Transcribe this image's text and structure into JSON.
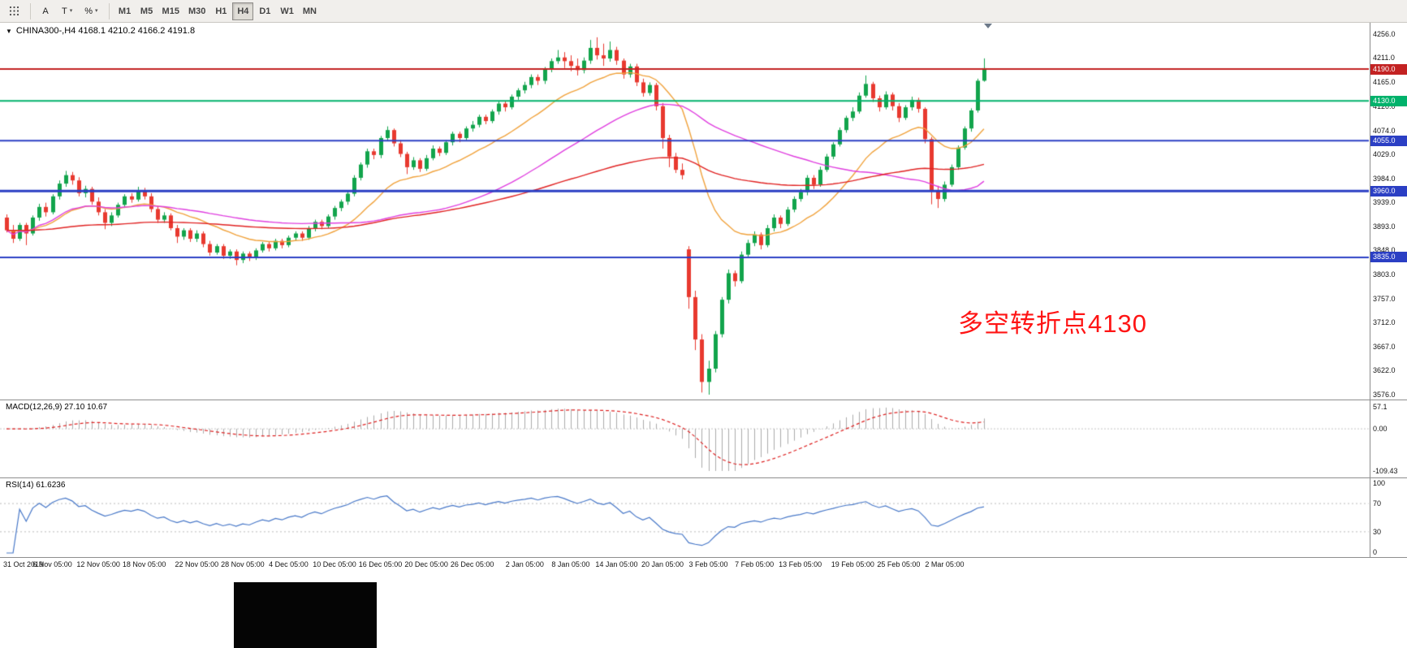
{
  "toolbar": {
    "caret_icon": "▾",
    "grid_tool": {
      "id": "tick-grid",
      "name": "grid"
    },
    "tools": [
      {
        "id": "cursor",
        "label": "A",
        "dropdown": false
      },
      {
        "id": "text",
        "label": "T",
        "dropdown": true
      },
      {
        "id": "indicators",
        "label": "%",
        "dropdown": true
      }
    ],
    "timeframes": [
      {
        "label": "M1",
        "active": false
      },
      {
        "label": "M5",
        "active": false
      },
      {
        "label": "M15",
        "active": false
      },
      {
        "label": "M30",
        "active": false
      },
      {
        "label": "H1",
        "active": false
      },
      {
        "label": "H4",
        "active": true
      },
      {
        "label": "D1",
        "active": false
      },
      {
        "label": "W1",
        "active": false
      },
      {
        "label": "MN",
        "active": false
      }
    ]
  },
  "title": {
    "dropdown_icon": "▼",
    "text": "CHINA300-,H4 4168.1 4210.2 4166.2 4191.8"
  },
  "chart_data": {
    "type": "candlestick",
    "symbol": "CHINA300-",
    "timeframe": "H4",
    "current_bar": {
      "open": 4168.1,
      "high": 4210.2,
      "low": 4166.2,
      "close": 4191.8
    },
    "bull_color": "#12a44c",
    "bear_color": "#e8392f",
    "y_axis": {
      "min": 3576,
      "max": 4256,
      "ticks": [
        "4256.0",
        "4211.0",
        "4165.0",
        "4120.0",
        "4074.0",
        "4029.0",
        "3984.0",
        "3939.0",
        "3893.0",
        "3848.0",
        "3803.0",
        "3757.0",
        "3712.0",
        "3667.0",
        "3622.0",
        "3576.0"
      ]
    },
    "hlines": [
      {
        "price": 4190.0,
        "label": "4190.0",
        "color": "#c32222",
        "width": 2
      },
      {
        "price": 4130.0,
        "label": "4130.0",
        "color": "#00b26b",
        "width": 2
      },
      {
        "price": 4055.0,
        "label": "4055.0",
        "color": "#2b3fc4",
        "width": 2
      },
      {
        "price": 3960.0,
        "label": "3960.0",
        "color": "#2b3fc4",
        "width": 3
      },
      {
        "price": 3835.0,
        "label": "3835.0",
        "color": "#2b3fc4",
        "width": 2
      }
    ],
    "overlays": [
      {
        "name": "ma-fast-orange",
        "type": "ema",
        "period": 18,
        "color": "#f0a23c"
      },
      {
        "name": "ma-mid-magenta",
        "type": "sma",
        "period": 45,
        "color": "#df3fdf"
      },
      {
        "name": "ma-slow-red",
        "type": "ema",
        "period": 120,
        "color": "#e02222"
      }
    ],
    "annotation": {
      "text": "多空转折点4130",
      "color": "#ff1414"
    },
    "x_labels": [
      {
        "text": "31 Oct 2019",
        "i": 0
      },
      {
        "text": "6 Nov 05:00",
        "i": 7
      },
      {
        "text": "12 Nov 05:00",
        "i": 14
      },
      {
        "text": "18 Nov 05:00",
        "i": 21
      },
      {
        "text": "22 Nov 05:00",
        "i": 29
      },
      {
        "text": "28 Nov 05:00",
        "i": 36
      },
      {
        "text": "4 Dec 05:00",
        "i": 43
      },
      {
        "text": "10 Dec 05:00",
        "i": 50
      },
      {
        "text": "16 Dec 05:00",
        "i": 57
      },
      {
        "text": "20 Dec 05:00",
        "i": 64
      },
      {
        "text": "26 Dec 05:00",
        "i": 71
      },
      {
        "text": "2 Jan 05:00",
        "i": 79
      },
      {
        "text": "8 Jan 05:00",
        "i": 86
      },
      {
        "text": "14 Jan 05:00",
        "i": 93
      },
      {
        "text": "20 Jan 05:00",
        "i": 100
      },
      {
        "text": "3 Feb 05:00",
        "i": 107
      },
      {
        "text": "7 Feb 05:00",
        "i": 114
      },
      {
        "text": "13 Feb 05:00",
        "i": 121
      },
      {
        "text": "19 Feb 05:00",
        "i": 129
      },
      {
        "text": "25 Feb 05:00",
        "i": 136
      },
      {
        "text": "2 Mar 05:00",
        "i": 143
      }
    ],
    "candles": [
      [
        3910,
        3916,
        3882,
        3886
      ],
      [
        3886,
        3896,
        3862,
        3870
      ],
      [
        3870,
        3900,
        3866,
        3896
      ],
      [
        3896,
        3900,
        3858,
        3880
      ],
      [
        3880,
        3914,
        3876,
        3910
      ],
      [
        3910,
        3936,
        3904,
        3930
      ],
      [
        3930,
        3938,
        3912,
        3920
      ],
      [
        3920,
        3954,
        3916,
        3950
      ],
      [
        3950,
        3980,
        3944,
        3974
      ],
      [
        3974,
        3998,
        3968,
        3990
      ],
      [
        3990,
        3996,
        3972,
        3980
      ],
      [
        3980,
        3986,
        3950,
        3956
      ],
      [
        3956,
        3970,
        3948,
        3964
      ],
      [
        3964,
        3968,
        3934,
        3940
      ],
      [
        3940,
        3948,
        3914,
        3920
      ],
      [
        3920,
        3926,
        3888,
        3900
      ],
      [
        3900,
        3920,
        3894,
        3914
      ],
      [
        3914,
        3938,
        3910,
        3934
      ],
      [
        3934,
        3954,
        3928,
        3950
      ],
      [
        3950,
        3956,
        3938,
        3944
      ],
      [
        3944,
        3968,
        3940,
        3960
      ],
      [
        3960,
        3966,
        3944,
        3950
      ],
      [
        3950,
        3956,
        3920,
        3926
      ],
      [
        3926,
        3932,
        3900,
        3906
      ],
      [
        3906,
        3920,
        3900,
        3914
      ],
      [
        3914,
        3918,
        3886,
        3890
      ],
      [
        3890,
        3896,
        3862,
        3874
      ],
      [
        3874,
        3890,
        3868,
        3886
      ],
      [
        3886,
        3890,
        3864,
        3870
      ],
      [
        3870,
        3886,
        3864,
        3880
      ],
      [
        3880,
        3884,
        3854,
        3860
      ],
      [
        3860,
        3866,
        3838,
        3844
      ],
      [
        3844,
        3860,
        3840,
        3856
      ],
      [
        3856,
        3860,
        3832,
        3838
      ],
      [
        3838,
        3850,
        3832,
        3846
      ],
      [
        3846,
        3850,
        3820,
        3830
      ],
      [
        3830,
        3846,
        3824,
        3842
      ],
      [
        3842,
        3846,
        3828,
        3834
      ],
      [
        3834,
        3852,
        3830,
        3848
      ],
      [
        3848,
        3864,
        3844,
        3860
      ],
      [
        3860,
        3864,
        3846,
        3852
      ],
      [
        3852,
        3870,
        3848,
        3866
      ],
      [
        3866,
        3870,
        3852,
        3858
      ],
      [
        3858,
        3876,
        3854,
        3872
      ],
      [
        3872,
        3884,
        3866,
        3880
      ],
      [
        3880,
        3884,
        3866,
        3872
      ],
      [
        3872,
        3894,
        3868,
        3890
      ],
      [
        3890,
        3906,
        3884,
        3902
      ],
      [
        3902,
        3906,
        3888,
        3894
      ],
      [
        3894,
        3916,
        3890,
        3912
      ],
      [
        3912,
        3932,
        3906,
        3928
      ],
      [
        3928,
        3944,
        3922,
        3940
      ],
      [
        3940,
        3960,
        3934,
        3955
      ],
      [
        3955,
        3990,
        3950,
        3985
      ],
      [
        3985,
        4014,
        3980,
        4010
      ],
      [
        4010,
        4040,
        4004,
        4035
      ],
      [
        4035,
        4040,
        4020,
        4028
      ],
      [
        4028,
        4064,
        4022,
        4060
      ],
      [
        4060,
        4082,
        4054,
        4075
      ],
      [
        4075,
        4078,
        4044,
        4050
      ],
      [
        4050,
        4056,
        4024,
        4030
      ],
      [
        4030,
        4034,
        3992,
        4005
      ],
      [
        4005,
        4024,
        4000,
        4018
      ],
      [
        4018,
        4022,
        3996,
        4002
      ],
      [
        4002,
        4028,
        3998,
        4022
      ],
      [
        4022,
        4046,
        4018,
        4040
      ],
      [
        4040,
        4044,
        4026,
        4032
      ],
      [
        4032,
        4056,
        4028,
        4052
      ],
      [
        4052,
        4072,
        4046,
        4068
      ],
      [
        4068,
        4072,
        4052,
        4060
      ],
      [
        4060,
        4082,
        4056,
        4078
      ],
      [
        4078,
        4092,
        4072,
        4085
      ],
      [
        4085,
        4104,
        4080,
        4100
      ],
      [
        4100,
        4104,
        4086,
        4092
      ],
      [
        4092,
        4114,
        4088,
        4110
      ],
      [
        4110,
        4130,
        4104,
        4125
      ],
      [
        4125,
        4130,
        4110,
        4118
      ],
      [
        4118,
        4142,
        4114,
        4138
      ],
      [
        4138,
        4154,
        4132,
        4150
      ],
      [
        4150,
        4166,
        4144,
        4160
      ],
      [
        4160,
        4180,
        4154,
        4175
      ],
      [
        4175,
        4180,
        4160,
        4168
      ],
      [
        4168,
        4194,
        4162,
        4190
      ],
      [
        4190,
        4210,
        4184,
        4205
      ],
      [
        4205,
        4226,
        4200,
        4212
      ],
      [
        4212,
        4222,
        4192,
        4205
      ],
      [
        4205,
        4216,
        4186,
        4196
      ],
      [
        4196,
        4210,
        4178,
        4188
      ],
      [
        4188,
        4212,
        4182,
        4206
      ],
      [
        4206,
        4245,
        4200,
        4230
      ],
      [
        4230,
        4250,
        4208,
        4216
      ],
      [
        4216,
        4238,
        4196,
        4210
      ],
      [
        4210,
        4242,
        4204,
        4226
      ],
      [
        4226,
        4232,
        4198,
        4206
      ],
      [
        4206,
        4210,
        4172,
        4180
      ],
      [
        4180,
        4200,
        4174,
        4195
      ],
      [
        4195,
        4200,
        4158,
        4165
      ],
      [
        4165,
        4172,
        4138,
        4145
      ],
      [
        4145,
        4165,
        4140,
        4160
      ],
      [
        4160,
        4164,
        4112,
        4120
      ],
      [
        4120,
        4126,
        4040,
        4060
      ],
      [
        4060,
        4066,
        4005,
        4025
      ],
      [
        4025,
        4032,
        3994,
        4000
      ],
      [
        4000,
        4012,
        3982,
        3990
      ],
      [
        3850,
        3856,
        3738,
        3760
      ],
      [
        3760,
        3772,
        3660,
        3680
      ],
      [
        3680,
        3690,
        3580,
        3600
      ],
      [
        3600,
        3640,
        3576,
        3625
      ],
      [
        3625,
        3696,
        3618,
        3690
      ],
      [
        3690,
        3760,
        3684,
        3755
      ],
      [
        3755,
        3812,
        3748,
        3805
      ],
      [
        3805,
        3810,
        3780,
        3790
      ],
      [
        3790,
        3846,
        3786,
        3840
      ],
      [
        3840,
        3868,
        3834,
        3862
      ],
      [
        3862,
        3884,
        3856,
        3878
      ],
      [
        3878,
        3882,
        3850,
        3858
      ],
      [
        3858,
        3896,
        3854,
        3890
      ],
      [
        3890,
        3916,
        3884,
        3910
      ],
      [
        3910,
        3914,
        3890,
        3898
      ],
      [
        3898,
        3930,
        3894,
        3925
      ],
      [
        3925,
        3950,
        3920,
        3945
      ],
      [
        3945,
        3964,
        3940,
        3958
      ],
      [
        3958,
        3990,
        3952,
        3985
      ],
      [
        3985,
        3990,
        3964,
        3972
      ],
      [
        3972,
        4006,
        3968,
        4000
      ],
      [
        4000,
        4030,
        3996,
        4025
      ],
      [
        4025,
        4052,
        4020,
        4048
      ],
      [
        4048,
        4080,
        4044,
        4075
      ],
      [
        4075,
        4102,
        4070,
        4098
      ],
      [
        4098,
        4118,
        4092,
        4110
      ],
      [
        4110,
        4146,
        4106,
        4140
      ],
      [
        4140,
        4178,
        4136,
        4162
      ],
      [
        4162,
        4166,
        4128,
        4135
      ],
      [
        4135,
        4140,
        4110,
        4118
      ],
      [
        4118,
        4148,
        4114,
        4142
      ],
      [
        4142,
        4146,
        4112,
        4120
      ],
      [
        4120,
        4126,
        4090,
        4098
      ],
      [
        4098,
        4122,
        4094,
        4118
      ],
      [
        4118,
        4138,
        4112,
        4132
      ],
      [
        4132,
        4136,
        4108,
        4115
      ],
      [
        4115,
        4118,
        4050,
        4058
      ],
      [
        4058,
        4062,
        3935,
        3962
      ],
      [
        3962,
        3970,
        3928,
        3945
      ],
      [
        3945,
        3978,
        3940,
        3972
      ],
      [
        3972,
        4010,
        3968,
        4005
      ],
      [
        4005,
        4046,
        4000,
        4042
      ],
      [
        4042,
        4082,
        4038,
        4078
      ],
      [
        4078,
        4116,
        4072,
        4112
      ],
      [
        4112,
        4172,
        4108,
        4168
      ],
      [
        4168.1,
        4210.2,
        4166.2,
        4191.8
      ]
    ]
  },
  "macd": {
    "label": "MACD(12,26,9) 27.10 10.67",
    "fast": 12,
    "slow": 26,
    "signal": 9,
    "value": 27.1,
    "signal_value": 10.67,
    "range": [
      -109.43,
      57.1
    ],
    "axis": [
      {
        "text": "57.1",
        "v": 57.1
      },
      {
        "text": "0.00",
        "v": 0
      },
      {
        "text": "-109.43",
        "v": -109.43
      }
    ],
    "hist_color": "#ababab",
    "signal_color": "#dd2222",
    "zero_line_color": "#c8c8c8"
  },
  "rsi": {
    "label": "RSI(14) 61.6236",
    "period": 14,
    "value": 61.6236,
    "levels": [
      30,
      70
    ],
    "axis": [
      {
        "text": "100",
        "v": 100
      },
      {
        "text": "70",
        "v": 70
      },
      {
        "text": "30",
        "v": 30
      },
      {
        "text": "0",
        "v": 0
      }
    ],
    "color": "#4878c8",
    "level_color": "#bbbbbb"
  }
}
